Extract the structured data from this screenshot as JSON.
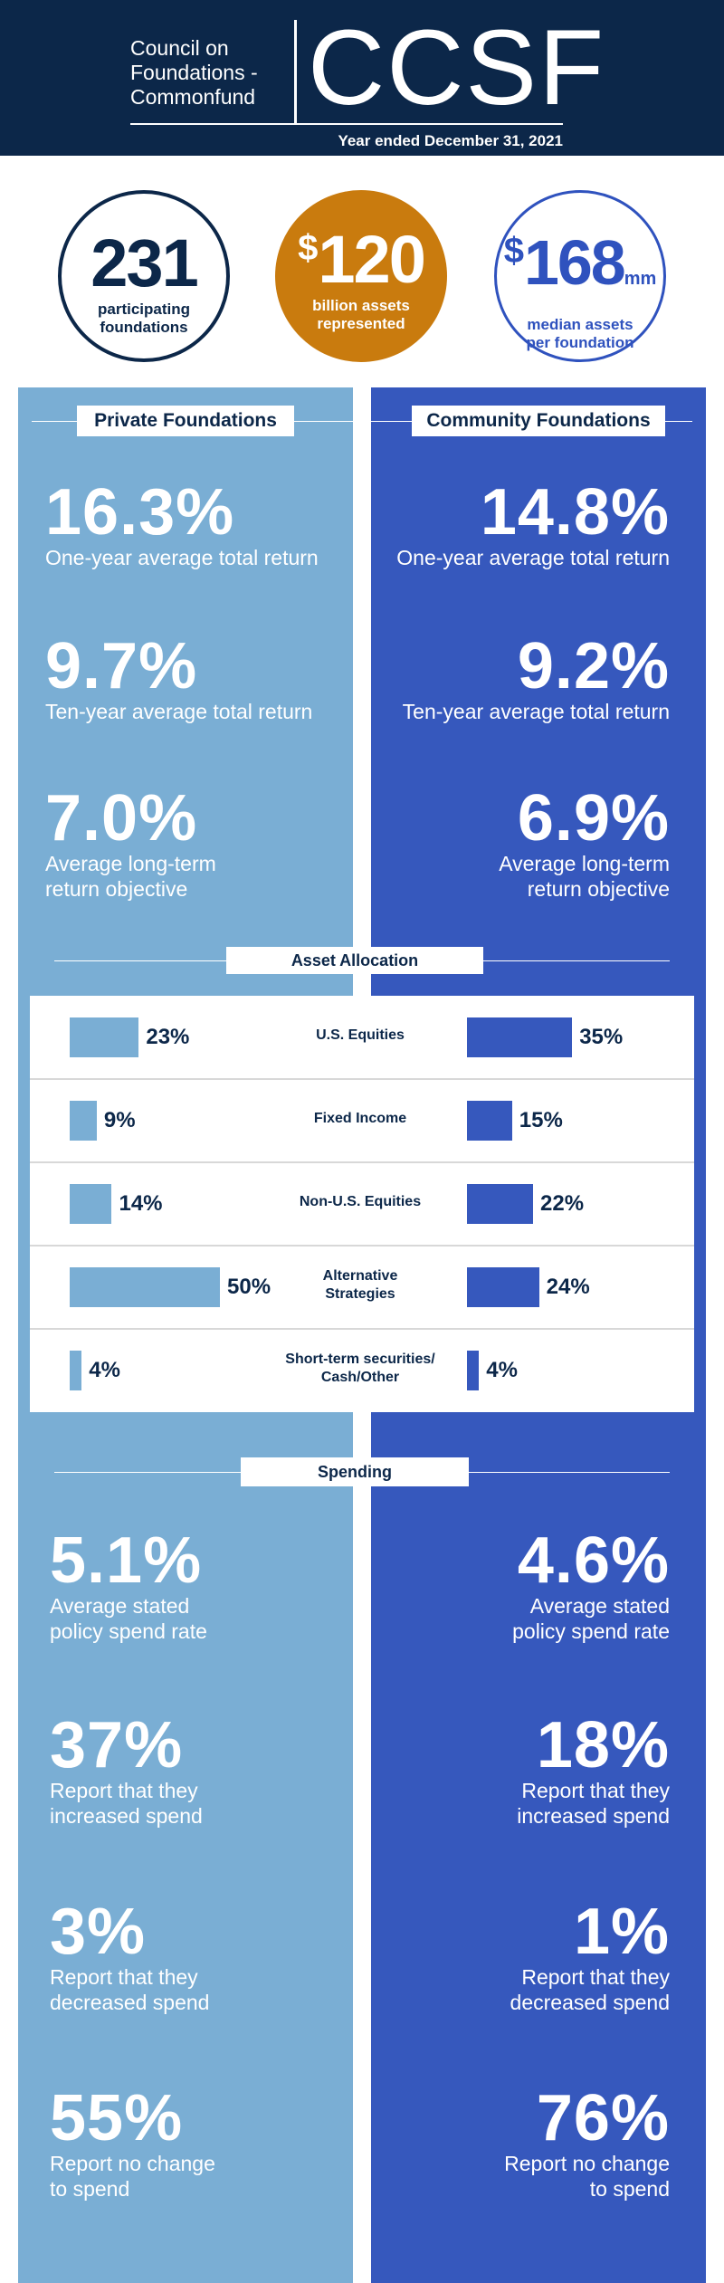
{
  "header": {
    "org_line1": "Council on",
    "org_line2": "Foundations -",
    "org_line3": "Commonfund",
    "logo": "CCSF",
    "year": "Year ended December 31, 2021"
  },
  "stats": [
    {
      "value": "231",
      "caption": "participating foundations"
    },
    {
      "prefix": "$",
      "value": "120",
      "caption": "billion assets represented"
    },
    {
      "prefix": "$",
      "value": "168",
      "suffix": "mm",
      "caption": "median assets per foundation"
    }
  ],
  "columns": {
    "private": "Private Foundations",
    "community": "Community Foundations"
  },
  "returns": {
    "private": [
      {
        "value": "16.3%",
        "label": "One-year average total return"
      },
      {
        "value": "9.7%",
        "label": "Ten-year average total return"
      },
      {
        "value": "7.0%",
        "label_1": "Average long-term",
        "label_2": "return objective"
      }
    ],
    "community": [
      {
        "value": "14.8%",
        "label": "One-year average total return"
      },
      {
        "value": "9.2%",
        "label": "Ten-year average total return"
      },
      {
        "value": "6.9%",
        "label_1": "Average long-term",
        "label_2": "return objective"
      }
    ]
  },
  "asset_allocation": {
    "title": "Asset Allocation",
    "rows": [
      {
        "category_1": "U.S. Equities",
        "category_2": "",
        "private": 23,
        "community": 35,
        "private_label": "23%",
        "community_label": "35%"
      },
      {
        "category_1": "Fixed Income",
        "category_2": "",
        "private": 9,
        "community": 15,
        "private_label": "9%",
        "community_label": "15%"
      },
      {
        "category_1": "Non-U.S. Equities",
        "category_2": "",
        "private": 14,
        "community": 22,
        "private_label": "14%",
        "community_label": "22%"
      },
      {
        "category_1": "Alternative",
        "category_2": "Strategies",
        "private": 50,
        "community": 24,
        "private_label": "50%",
        "community_label": "24%"
      },
      {
        "category_1": "Short-term securities/",
        "category_2": "Cash/Other",
        "private": 4,
        "community": 4,
        "private_label": "4%",
        "community_label": "4%"
      }
    ]
  },
  "spending": {
    "title": "Spending",
    "private": [
      {
        "value": "5.1%",
        "label_1": "Average stated",
        "label_2": "policy spend rate"
      },
      {
        "value": "37%",
        "label_1": "Report that they",
        "label_2": "increased spend"
      },
      {
        "value": "3%",
        "label_1": "Report that they",
        "label_2": "decreased spend"
      },
      {
        "value": "55%",
        "label_1": "Report no change",
        "label_2": "to spend"
      }
    ],
    "community": [
      {
        "value": "4.6%",
        "label_1": "Average stated",
        "label_2": "policy spend rate"
      },
      {
        "value": "18%",
        "label_1": "Report that they",
        "label_2": "increased spend"
      },
      {
        "value": "1%",
        "label_1": "Report that they",
        "label_2": "decreased spend"
      },
      {
        "value": "76%",
        "label_1": "Report no change",
        "label_2": "to spend"
      }
    ]
  },
  "colors": {
    "navy": "#0c2749",
    "light_blue": "#7aaed4",
    "royal_blue": "#3658bd",
    "orange": "#c97b0e"
  }
}
